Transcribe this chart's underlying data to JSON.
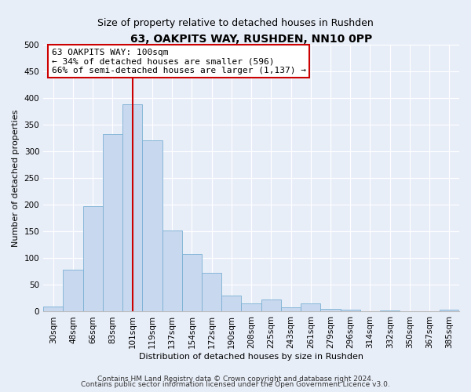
{
  "title": "63, OAKPITS WAY, RUSHDEN, NN10 0PP",
  "subtitle": "Size of property relative to detached houses in Rushden",
  "xlabel": "Distribution of detached houses by size in Rushden",
  "ylabel": "Number of detached properties",
  "bar_labels": [
    "30sqm",
    "48sqm",
    "66sqm",
    "83sqm",
    "101sqm",
    "119sqm",
    "137sqm",
    "154sqm",
    "172sqm",
    "190sqm",
    "208sqm",
    "225sqm",
    "243sqm",
    "261sqm",
    "279sqm",
    "296sqm",
    "314sqm",
    "332sqm",
    "350sqm",
    "367sqm",
    "385sqm"
  ],
  "bar_values": [
    10,
    78,
    197,
    332,
    388,
    320,
    151,
    107,
    73,
    30,
    15,
    22,
    8,
    15,
    5,
    4,
    0,
    2,
    0,
    0,
    3
  ],
  "bar_color": "#c8d8ee",
  "bar_edge_color": "#7aaan0",
  "vline_x_index": 4,
  "vline_color": "#cc0000",
  "annotation_title": "63 OAKPITS WAY: 100sqm",
  "annotation_line1": "← 34% of detached houses are smaller (596)",
  "annotation_line2": "66% of semi-detached houses are larger (1,137) →",
  "annotation_box_facecolor": "#ffffff",
  "annotation_box_edgecolor": "#cc0000",
  "ylim": [
    0,
    500
  ],
  "yticks": [
    0,
    50,
    100,
    150,
    200,
    250,
    300,
    350,
    400,
    450,
    500
  ],
  "background_color": "#e8eef8",
  "grid_color": "#ffffff",
  "footer1": "Contains HM Land Registry data © Crown copyright and database right 2024.",
  "footer2": "Contains public sector information licensed under the Open Government Licence v3.0.",
  "title_fontsize": 10,
  "subtitle_fontsize": 9,
  "axis_label_fontsize": 8,
  "tick_fontsize": 7.5,
  "annotation_fontsize": 8,
  "footer_fontsize": 6.5
}
